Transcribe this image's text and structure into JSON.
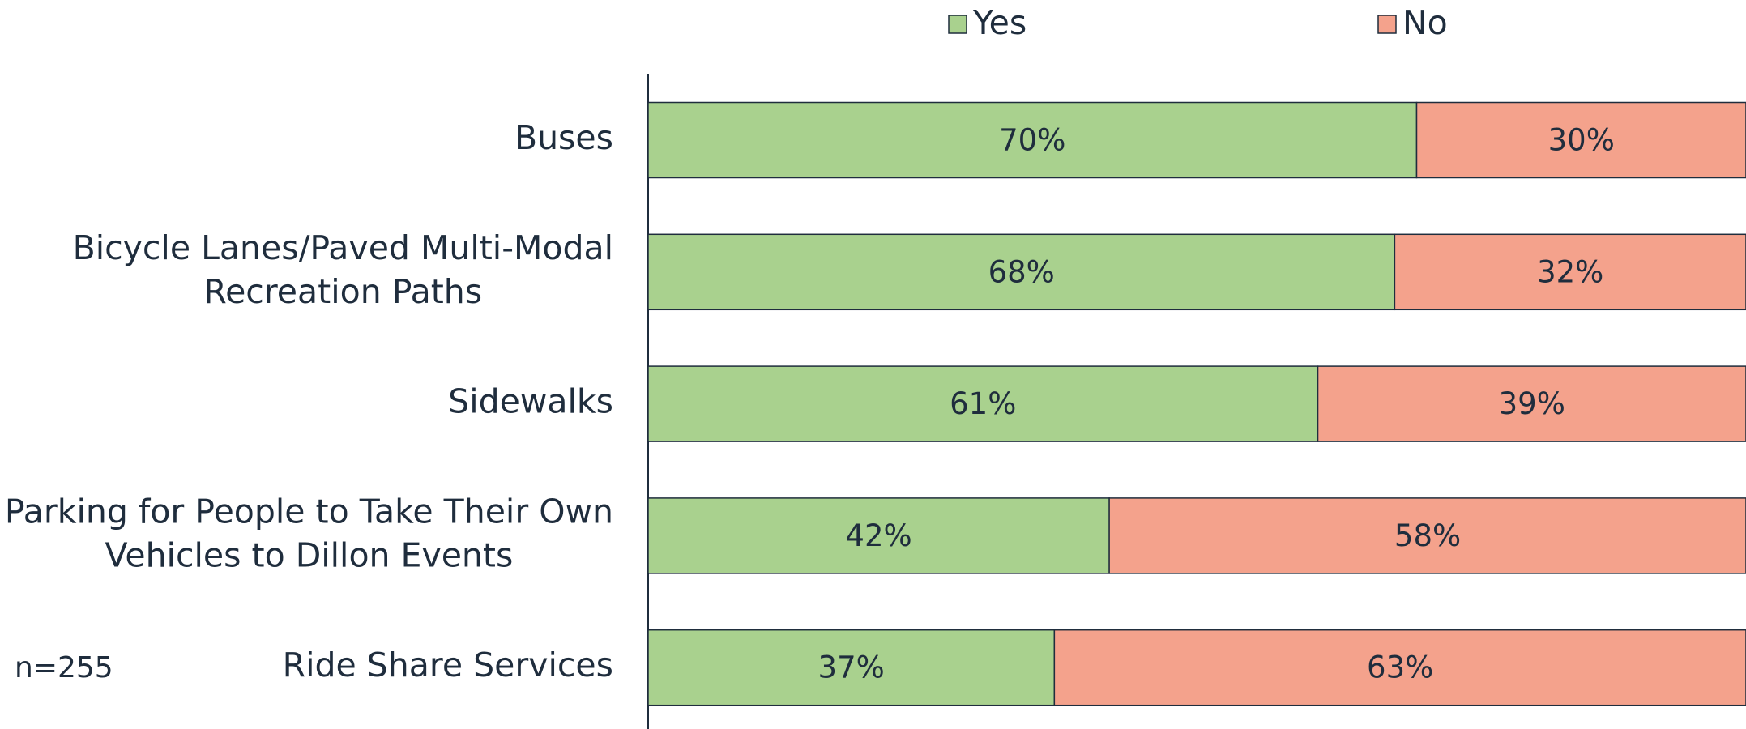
{
  "chart_data": {
    "type": "stacked_barh",
    "categories": [
      "Buses",
      "Bicycle Lanes/Paved Multi-Modal Recreation Paths",
      "Sidewalks",
      "Parking for People to Take Their Own Vehicles to Dillon Events",
      "Ride Share Services"
    ],
    "series": [
      {
        "name": "Yes",
        "color": "#a9d18e",
        "values": [
          70,
          68,
          61,
          42,
          37
        ],
        "value_labels": [
          "70%",
          "68%",
          "61%",
          "42%",
          "37%"
        ]
      },
      {
        "name": "No",
        "color": "#f4a28c",
        "values": [
          30,
          32,
          39,
          58,
          63
        ],
        "value_labels": [
          "30%",
          "32%",
          "39%",
          "58%",
          "63%"
        ]
      }
    ],
    "xlim": [
      0,
      100
    ],
    "annotation": "n=255"
  }
}
